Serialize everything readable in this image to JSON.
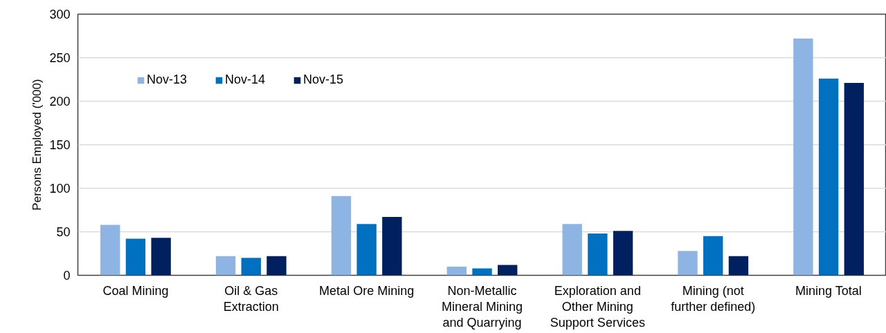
{
  "chart_data": {
    "type": "bar",
    "ylabel": "Persons Employed ('000)",
    "categories": [
      "Coal Mining",
      "Oil & Gas Extraction",
      "Metal Ore Mining",
      "Non-Metallic Mineral Mining and Quarrying",
      "Exploration and Other Mining Support Services",
      "Mining (not further defined)",
      "Mining Total"
    ],
    "series": [
      {
        "name": "Nov-13",
        "color": "#8eb4e3",
        "values": [
          58,
          22,
          91,
          10,
          59,
          28,
          272
        ]
      },
      {
        "name": "Nov-14",
        "color": "#0070c0",
        "values": [
          42,
          20,
          59,
          8,
          48,
          45,
          226
        ]
      },
      {
        "name": "Nov-15",
        "color": "#002060",
        "values": [
          43,
          22,
          67,
          12,
          51,
          22,
          221
        ]
      }
    ],
    "ylim": [
      0,
      300
    ],
    "yticks": [
      0,
      50,
      100,
      150,
      200,
      250,
      300
    ],
    "grid": "y",
    "legend": "top left"
  }
}
